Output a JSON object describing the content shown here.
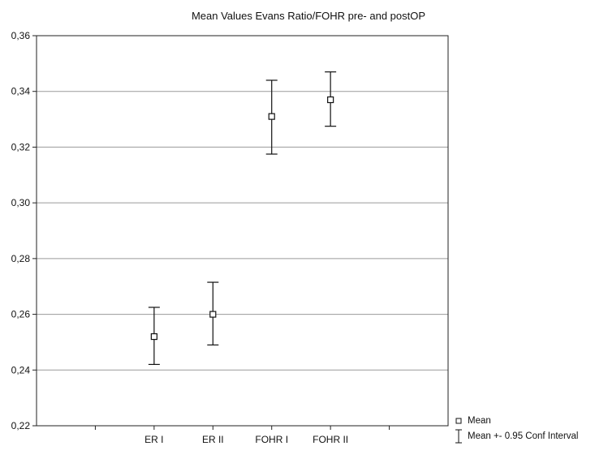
{
  "chart_data": {
    "type": "scatter",
    "title": "Mean Values Evans Ratio/FOHR pre- and postOP",
    "xlabel": "",
    "ylabel": "",
    "categories": [
      "ER I",
      "ER II",
      "FOHR I",
      "FOHR II"
    ],
    "ylim": [
      0.22,
      0.36
    ],
    "yticks": [
      "0,22",
      "0,24",
      "0,26",
      "0,28",
      "0,30",
      "0,32",
      "0,34",
      "0,36"
    ],
    "grid": true,
    "legend_position": "bottom-right",
    "series": [
      {
        "name": "Mean",
        "values": [
          0.252,
          0.26,
          0.331,
          0.337
        ],
        "ci_lower": [
          0.242,
          0.249,
          0.3175,
          0.3275
        ],
        "ci_upper": [
          0.2625,
          0.2715,
          0.344,
          0.347
        ]
      }
    ],
    "legend": {
      "mean_label": "Mean",
      "ci_label": "Mean +- 0.95 Conf Interval"
    }
  }
}
